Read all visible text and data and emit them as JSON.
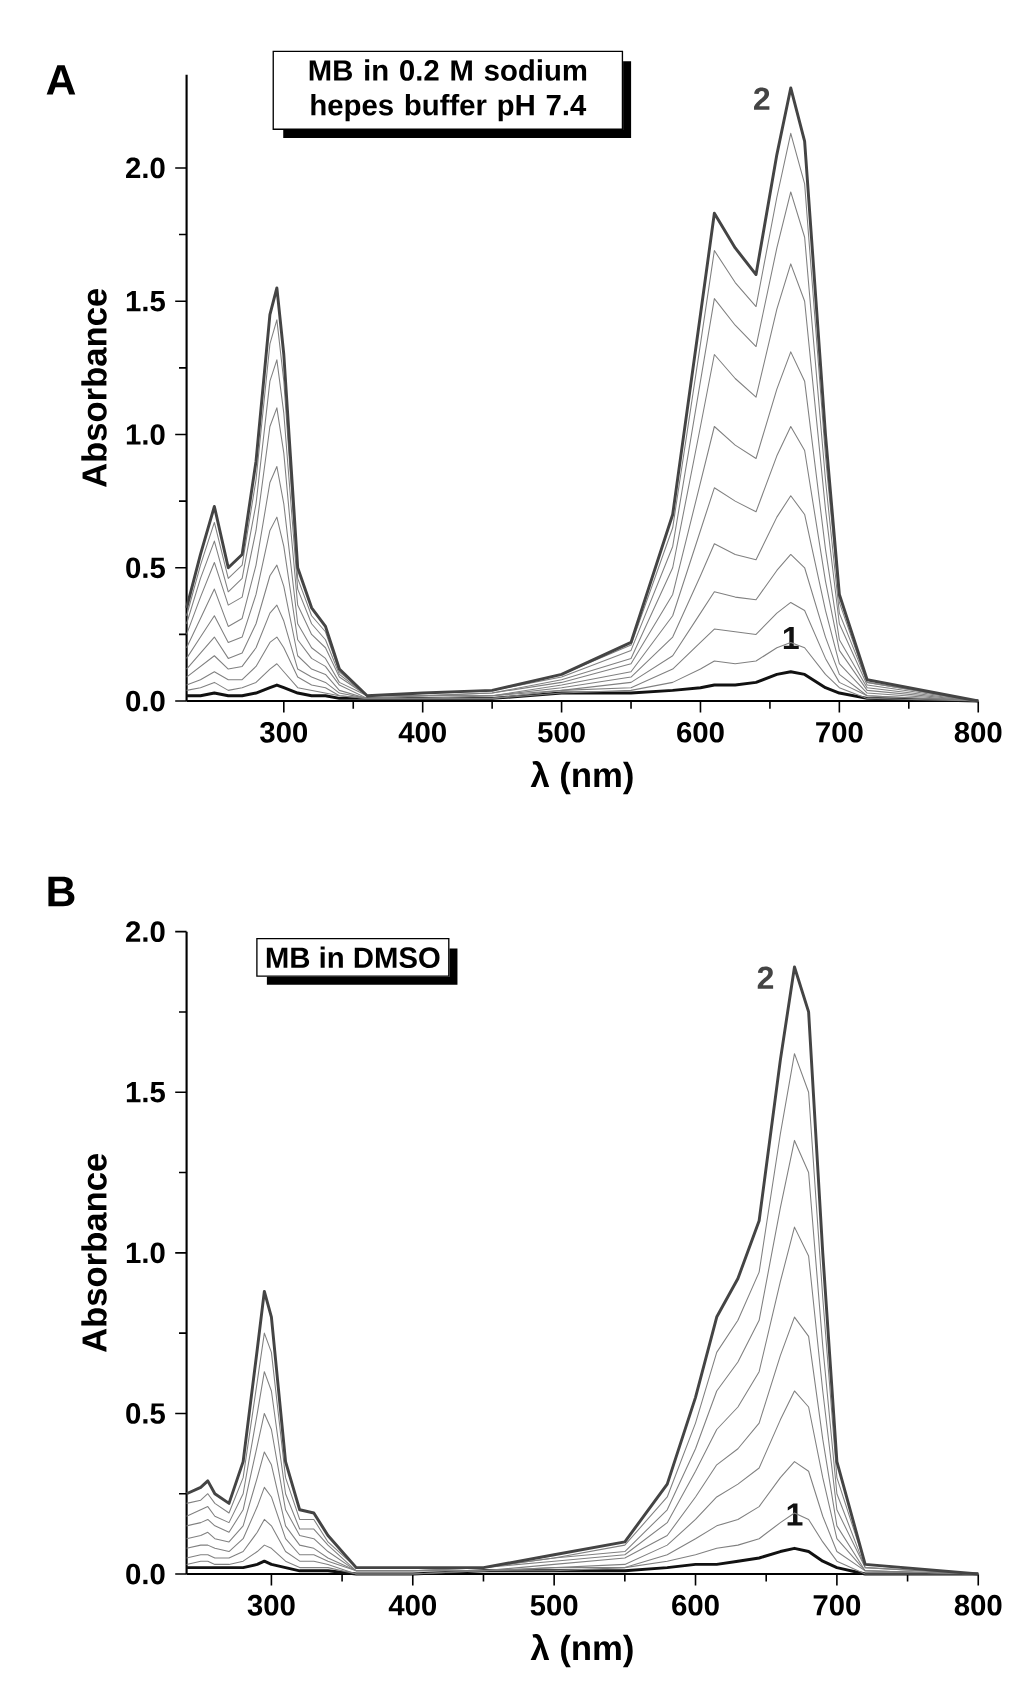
{
  "chart_data": [
    {
      "type": "line",
      "title": "A",
      "xlabel": "λ (nm)",
      "ylabel": "Absorbance",
      "x": [
        230,
        240,
        250,
        260,
        270,
        280,
        290,
        295,
        300,
        310,
        320,
        330,
        340,
        360,
        400,
        450,
        500,
        550,
        580,
        600,
        610,
        625,
        640,
        655,
        665,
        675,
        690,
        700,
        720,
        800
      ],
      "series": [
        {
          "name": "1",
          "color": "#111111",
          "values": [
            0.02,
            0.02,
            0.03,
            0.02,
            0.02,
            0.03,
            0.05,
            0.06,
            0.05,
            0.03,
            0.02,
            0.02,
            0.01,
            0.01,
            0.01,
            0.01,
            0.03,
            0.03,
            0.04,
            0.05,
            0.06,
            0.06,
            0.07,
            0.1,
            0.11,
            0.1,
            0.05,
            0.03,
            0.01,
            0
          ]
        },
        {
          "color": "#808080",
          "values": [
            0.04,
            0.05,
            0.07,
            0.04,
            0.05,
            0.07,
            0.12,
            0.14,
            0.11,
            0.05,
            0.04,
            0.03,
            0.02,
            0.01,
            0.01,
            0.01,
            0.03,
            0.04,
            0.07,
            0.12,
            0.15,
            0.14,
            0.15,
            0.2,
            0.22,
            0.2,
            0.1,
            0.05,
            0.01,
            0
          ]
        },
        {
          "color": "#808080",
          "values": [
            0.06,
            0.08,
            0.11,
            0.08,
            0.08,
            0.13,
            0.22,
            0.24,
            0.2,
            0.09,
            0.06,
            0.05,
            0.02,
            0.01,
            0.01,
            0.01,
            0.04,
            0.05,
            0.12,
            0.22,
            0.27,
            0.26,
            0.25,
            0.33,
            0.37,
            0.34,
            0.16,
            0.07,
            0.02,
            0
          ]
        },
        {
          "color": "#808080",
          "values": [
            0.09,
            0.13,
            0.17,
            0.12,
            0.13,
            0.2,
            0.33,
            0.36,
            0.3,
            0.12,
            0.09,
            0.07,
            0.03,
            0.01,
            0.01,
            0.02,
            0.04,
            0.07,
            0.17,
            0.33,
            0.41,
            0.39,
            0.38,
            0.49,
            0.55,
            0.5,
            0.24,
            0.1,
            0.02,
            0
          ]
        },
        {
          "color": "#808080",
          "values": [
            0.12,
            0.18,
            0.24,
            0.16,
            0.18,
            0.29,
            0.47,
            0.51,
            0.43,
            0.17,
            0.12,
            0.1,
            0.04,
            0.01,
            0.02,
            0.02,
            0.05,
            0.09,
            0.24,
            0.47,
            0.59,
            0.55,
            0.53,
            0.69,
            0.77,
            0.7,
            0.34,
            0.14,
            0.03,
            0
          ]
        },
        {
          "color": "#808080",
          "values": [
            0.16,
            0.24,
            0.32,
            0.22,
            0.24,
            0.4,
            0.64,
            0.69,
            0.58,
            0.23,
            0.16,
            0.13,
            0.06,
            0.01,
            0.02,
            0.02,
            0.06,
            0.11,
            0.32,
            0.64,
            0.8,
            0.75,
            0.71,
            0.92,
            1.03,
            0.94,
            0.45,
            0.19,
            0.04,
            0
          ]
        },
        {
          "color": "#808080",
          "values": [
            0.2,
            0.31,
            0.42,
            0.28,
            0.31,
            0.51,
            0.82,
            0.88,
            0.74,
            0.29,
            0.2,
            0.16,
            0.07,
            0.02,
            0.02,
            0.03,
            0.07,
            0.14,
            0.4,
            0.82,
            1.03,
            0.96,
            0.91,
            1.17,
            1.31,
            1.2,
            0.57,
            0.23,
            0.05,
            0
          ]
        },
        {
          "color": "#808080",
          "values": [
            0.25,
            0.39,
            0.52,
            0.36,
            0.39,
            0.64,
            1.03,
            1.1,
            0.93,
            0.36,
            0.25,
            0.2,
            0.09,
            0.02,
            0.02,
            0.03,
            0.08,
            0.16,
            0.5,
            1.03,
            1.3,
            1.21,
            1.14,
            1.47,
            1.64,
            1.5,
            0.72,
            0.29,
            0.06,
            0
          ]
        },
        {
          "color": "#808080",
          "values": [
            0.29,
            0.46,
            0.6,
            0.41,
            0.46,
            0.74,
            1.2,
            1.28,
            1.08,
            0.42,
            0.29,
            0.23,
            0.1,
            0.02,
            0.03,
            0.04,
            0.09,
            0.19,
            0.58,
            1.2,
            1.51,
            1.41,
            1.33,
            1.7,
            1.91,
            1.74,
            0.83,
            0.33,
            0.07,
            0
          ]
        },
        {
          "color": "#808080",
          "values": [
            0.32,
            0.51,
            0.67,
            0.46,
            0.51,
            0.83,
            1.34,
            1.43,
            1.2,
            0.46,
            0.32,
            0.26,
            0.11,
            0.02,
            0.03,
            0.04,
            0.1,
            0.21,
            0.65,
            1.34,
            1.69,
            1.57,
            1.48,
            1.89,
            2.13,
            1.94,
            0.92,
            0.37,
            0.07,
            0
          ]
        },
        {
          "name": "2",
          "color": "#444444",
          "values": [
            0.35,
            0.55,
            0.73,
            0.5,
            0.55,
            0.9,
            1.45,
            1.55,
            1.3,
            0.5,
            0.35,
            0.28,
            0.12,
            0.02,
            0.03,
            0.04,
            0.1,
            0.22,
            0.7,
            1.45,
            1.83,
            1.7,
            1.6,
            2.05,
            2.3,
            2.1,
            1.0,
            0.4,
            0.08,
            0.0
          ]
        }
      ],
      "xlim": [
        230,
        800
      ],
      "ylim": [
        0,
        2.35
      ],
      "xticks": [
        300,
        400,
        500,
        600,
        700,
        800
      ],
      "yticks": [
        {
          "value": 0,
          "label": "0.0"
        },
        {
          "value": 0.5,
          "label": "0.5"
        },
        {
          "value": 1.0,
          "label": "1.0"
        },
        {
          "value": 1.5,
          "label": "1.5"
        },
        {
          "value": 2.0,
          "label": "2.0"
        }
      ],
      "annotations": [
        "MB in 0.2 M sodium hepes buffer pH 7.4"
      ]
    },
    {
      "type": "line",
      "title": "B",
      "xlabel": "λ (nm)",
      "ylabel": "Absorbance",
      "x": [
        240,
        250,
        255,
        260,
        270,
        280,
        290,
        295,
        300,
        310,
        320,
        330,
        340,
        360,
        400,
        450,
        500,
        550,
        580,
        600,
        615,
        630,
        645,
        660,
        670,
        680,
        690,
        700,
        720,
        800
      ],
      "series": [
        {
          "name": "1",
          "color": "#111111",
          "values": [
            0.02,
            0.02,
            0.02,
            0.02,
            0.02,
            0.02,
            0.03,
            0.04,
            0.03,
            0.02,
            0.01,
            0.01,
            0.01,
            0.0,
            0.0,
            0.01,
            0.01,
            0.01,
            0.02,
            0.03,
            0.03,
            0.04,
            0.05,
            0.07,
            0.08,
            0.07,
            0.04,
            0.02,
            0.0,
            0
          ]
        },
        {
          "color": "#808080",
          "values": [
            0.03,
            0.04,
            0.04,
            0.03,
            0.03,
            0.04,
            0.07,
            0.09,
            0.08,
            0.04,
            0.02,
            0.02,
            0.02,
            0,
            0,
            0.01,
            0.01,
            0.02,
            0.04,
            0.06,
            0.08,
            0.09,
            0.11,
            0.16,
            0.19,
            0.17,
            0.1,
            0.04,
            0,
            0
          ]
        },
        {
          "color": "#808080",
          "values": [
            0.05,
            0.06,
            0.06,
            0.05,
            0.05,
            0.07,
            0.13,
            0.17,
            0.15,
            0.07,
            0.04,
            0.04,
            0.03,
            0,
            0,
            0.01,
            0.02,
            0.02,
            0.06,
            0.11,
            0.15,
            0.17,
            0.21,
            0.3,
            0.35,
            0.32,
            0.18,
            0.07,
            0.01,
            0
          ]
        },
        {
          "color": "#808080",
          "values": [
            0.08,
            0.09,
            0.09,
            0.08,
            0.07,
            0.11,
            0.21,
            0.27,
            0.24,
            0.11,
            0.06,
            0.06,
            0.04,
            0.01,
            0.01,
            0.01,
            0.02,
            0.03,
            0.09,
            0.17,
            0.24,
            0.28,
            0.33,
            0.48,
            0.57,
            0.52,
            0.3,
            0.11,
            0.01,
            0
          ]
        },
        {
          "color": "#808080",
          "values": [
            0.11,
            0.12,
            0.13,
            0.11,
            0.1,
            0.15,
            0.3,
            0.38,
            0.34,
            0.15,
            0.09,
            0.08,
            0.05,
            0.01,
            0.01,
            0.01,
            0.03,
            0.05,
            0.12,
            0.24,
            0.34,
            0.39,
            0.47,
            0.68,
            0.8,
            0.74,
            0.42,
            0.15,
            0.01,
            0
          ]
        },
        {
          "color": "#808080",
          "values": [
            0.15,
            0.16,
            0.17,
            0.15,
            0.13,
            0.2,
            0.4,
            0.5,
            0.45,
            0.2,
            0.12,
            0.11,
            0.07,
            0.01,
            0.01,
            0.02,
            0.04,
            0.06,
            0.16,
            0.32,
            0.45,
            0.52,
            0.63,
            0.91,
            1.08,
            0.99,
            0.57,
            0.2,
            0.02,
            0
          ]
        },
        {
          "color": "#808080",
          "values": [
            0.18,
            0.2,
            0.21,
            0.18,
            0.16,
            0.25,
            0.5,
            0.63,
            0.57,
            0.25,
            0.14,
            0.14,
            0.09,
            0.01,
            0.01,
            0.02,
            0.05,
            0.07,
            0.2,
            0.39,
            0.57,
            0.66,
            0.79,
            1.14,
            1.35,
            1.25,
            0.71,
            0.25,
            0.02,
            0
          ]
        },
        {
          "color": "#808080",
          "values": [
            0.22,
            0.23,
            0.25,
            0.22,
            0.19,
            0.3,
            0.6,
            0.75,
            0.69,
            0.3,
            0.17,
            0.17,
            0.1,
            0.02,
            0.02,
            0.02,
            0.05,
            0.09,
            0.24,
            0.47,
            0.69,
            0.79,
            0.94,
            1.37,
            1.62,
            1.5,
            0.86,
            0.3,
            0.03,
            0
          ]
        },
        {
          "name": "2",
          "color": "#444444",
          "values": [
            0.25,
            0.27,
            0.29,
            0.25,
            0.22,
            0.35,
            0.7,
            0.88,
            0.8,
            0.35,
            0.2,
            0.19,
            0.12,
            0.02,
            0.02,
            0.02,
            0.06,
            0.1,
            0.28,
            0.55,
            0.8,
            0.92,
            1.1,
            1.6,
            1.89,
            1.75,
            1.0,
            0.35,
            0.03,
            0
          ]
        }
      ],
      "xlim": [
        240,
        800
      ],
      "ylim": [
        0,
        2.0
      ],
      "xticks": [
        300,
        400,
        500,
        600,
        700,
        800
      ],
      "yticks": [
        {
          "value": 0,
          "label": "0.0"
        },
        {
          "value": 0.5,
          "label": "0.5"
        },
        {
          "value": 1.0,
          "label": "1.0"
        },
        {
          "value": 1.5,
          "label": "1.5"
        },
        {
          "value": 2.0,
          "label": "2.0"
        }
      ],
      "annotations": [
        "MB in DMSO"
      ]
    }
  ]
}
